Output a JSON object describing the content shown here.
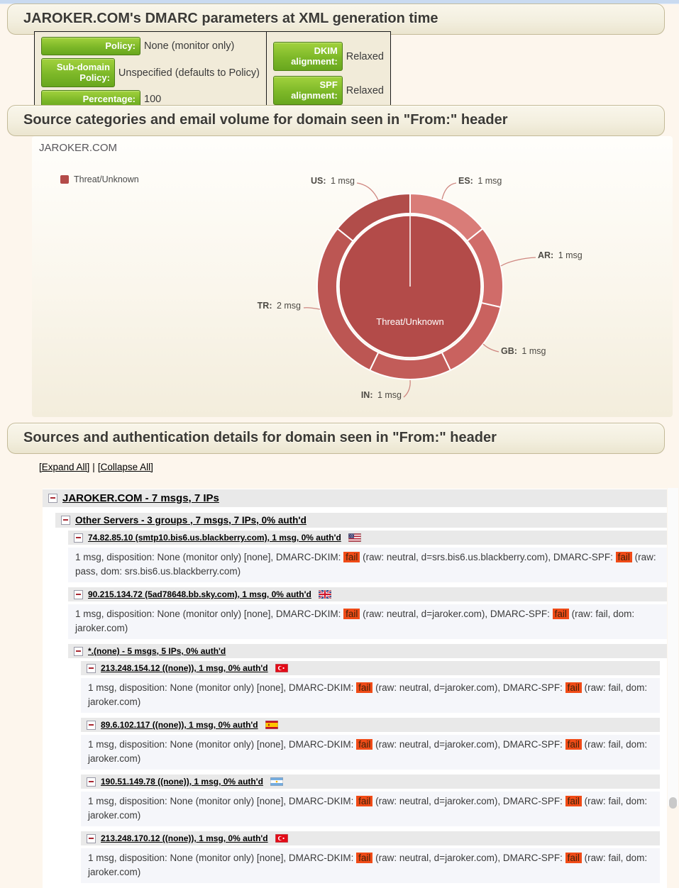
{
  "page": {
    "section1_title": "JAROKER.COM's DMARC parameters at XML generation time",
    "section2_title": "Source categories and email volume for domain seen in \"From:\" header",
    "section3_title": "Sources and authentication details for domain seen in \"From:\" header"
  },
  "params": {
    "left_rows": [
      {
        "label": "Policy:",
        "value": "None (monitor only)"
      },
      {
        "label": "Sub-domain Policy:",
        "value": "Unspecified (defaults to Policy)"
      },
      {
        "label": "Percentage:",
        "value": "100"
      }
    ],
    "right_rows": [
      {
        "label": "DKIM alignment:",
        "value": "Relaxed"
      },
      {
        "label": "SPF alignment:",
        "value": "Relaxed"
      }
    ],
    "label_color": "#7db828"
  },
  "controls": {
    "expand_all": "[Expand All]",
    "separator": "|",
    "collapse_all": "[Collapse All]"
  },
  "chart_data": {
    "type": "donut",
    "title": "JAROKER.COM",
    "legend": [
      {
        "label": "Threat/Unknown",
        "color": "#b34b49"
      }
    ],
    "center_label": "Threat/Unknown",
    "inner_color": "#b34b49",
    "total_msgs": 7,
    "slices": [
      {
        "code": "ES",
        "label": "ES:",
        "value": 1,
        "value_label": "1 msg",
        "color": "#d97c78"
      },
      {
        "code": "AR",
        "label": "AR:",
        "value": 1,
        "value_label": "1 msg",
        "color": "#d06c69"
      },
      {
        "code": "GB",
        "label": "GB:",
        "value": 1,
        "value_label": "1 msg",
        "color": "#c9625f"
      },
      {
        "code": "IN",
        "label": "IN:",
        "value": 1,
        "value_label": "1 msg",
        "color": "#c25c59"
      },
      {
        "code": "TR",
        "label": "TR:",
        "value": 2,
        "value_label": "2 msg",
        "color": "#bc5653"
      },
      {
        "code": "US",
        "label": "US:",
        "value": 1,
        "value_label": "1 msg",
        "color": "#b14d4a"
      }
    ]
  },
  "tree": {
    "rows": [
      {
        "type": "group",
        "level": 0,
        "label": "JAROKER.COM - 7 msgs, 7 IPs"
      },
      {
        "type": "group",
        "level": 1,
        "label": "Other Servers - 3 groups , 7 msgs, 7 IPs, 0% auth'd"
      },
      {
        "type": "host",
        "level": 2,
        "label": "74.82.85.10 (smtp10.bis6.us.blackberry.com), 1 msg, 0% auth'd",
        "flag": "us"
      },
      {
        "type": "detail",
        "level": 2,
        "segments": [
          {
            "text": "1 msg, disposition: None (monitor only) [none], DMARC-DKIM: "
          },
          {
            "badge": "fail"
          },
          {
            "text": " (raw: neutral, d=srs.bis6.us.blackberry.com), DMARC-SPF: "
          },
          {
            "badge": "fail"
          },
          {
            "text": " (raw: pass, dom: srs.bis6.us.blackberry.com)"
          }
        ]
      },
      {
        "type": "host",
        "level": 2,
        "label": "90.215.134.72 (5ad78648.bb.sky.com), 1 msg, 0% auth'd",
        "flag": "gb"
      },
      {
        "type": "detail",
        "level": 2,
        "segments": [
          {
            "text": "1 msg, disposition: None (monitor only) [none], DMARC-DKIM: "
          },
          {
            "badge": "fail"
          },
          {
            "text": " (raw: neutral, d=jaroker.com), DMARC-SPF: "
          },
          {
            "badge": "fail"
          },
          {
            "text": " (raw: fail, dom: jaroker.com)"
          }
        ]
      },
      {
        "type": "group",
        "level": 2,
        "label": "*.(none) - 5 msgs, 5 IPs, 0% auth'd"
      },
      {
        "type": "host",
        "level": 3,
        "label": "213.248.154.12 ((none)), 1 msg, 0% auth'd",
        "flag": "tr"
      },
      {
        "type": "detail",
        "level": 3,
        "segments": [
          {
            "text": "1 msg, disposition: None (monitor only) [none], DMARC-DKIM: "
          },
          {
            "badge": "fail"
          },
          {
            "text": " (raw: neutral, d=jaroker.com), DMARC-SPF: "
          },
          {
            "badge": "fail"
          },
          {
            "text": " (raw: fail, dom: jaroker.com)"
          }
        ]
      },
      {
        "type": "host",
        "level": 3,
        "label": "89.6.102.117 ((none)), 1 msg, 0% auth'd",
        "flag": "es"
      },
      {
        "type": "detail",
        "level": 3,
        "segments": [
          {
            "text": "1 msg, disposition: None (monitor only) [none], DMARC-DKIM: "
          },
          {
            "badge": "fail"
          },
          {
            "text": " (raw: neutral, d=jaroker.com), DMARC-SPF: "
          },
          {
            "badge": "fail"
          },
          {
            "text": " (raw: fail, dom: jaroker.com)"
          }
        ]
      },
      {
        "type": "host",
        "level": 3,
        "label": "190.51.149.78 ((none)), 1 msg, 0% auth'd",
        "flag": "ar"
      },
      {
        "type": "detail",
        "level": 3,
        "segments": [
          {
            "text": "1 msg, disposition: None (monitor only) [none], DMARC-DKIM: "
          },
          {
            "badge": "fail"
          },
          {
            "text": " (raw: neutral, d=jaroker.com), DMARC-SPF: "
          },
          {
            "badge": "fail"
          },
          {
            "text": " (raw: fail, dom: jaroker.com)"
          }
        ]
      },
      {
        "type": "host",
        "level": 3,
        "label": "213.248.170.12 ((none)), 1 msg, 0% auth'd",
        "flag": "tr"
      },
      {
        "type": "detail",
        "level": 3,
        "segments": [
          {
            "text": "1 msg, disposition: None (monitor only) [none], DMARC-DKIM: "
          },
          {
            "badge": "fail"
          },
          {
            "text": " (raw: neutral, d=jaroker.com), DMARC-SPF: "
          },
          {
            "badge": "fail"
          },
          {
            "text": " (raw: fail, dom: jaroker.com)"
          }
        ]
      }
    ]
  }
}
